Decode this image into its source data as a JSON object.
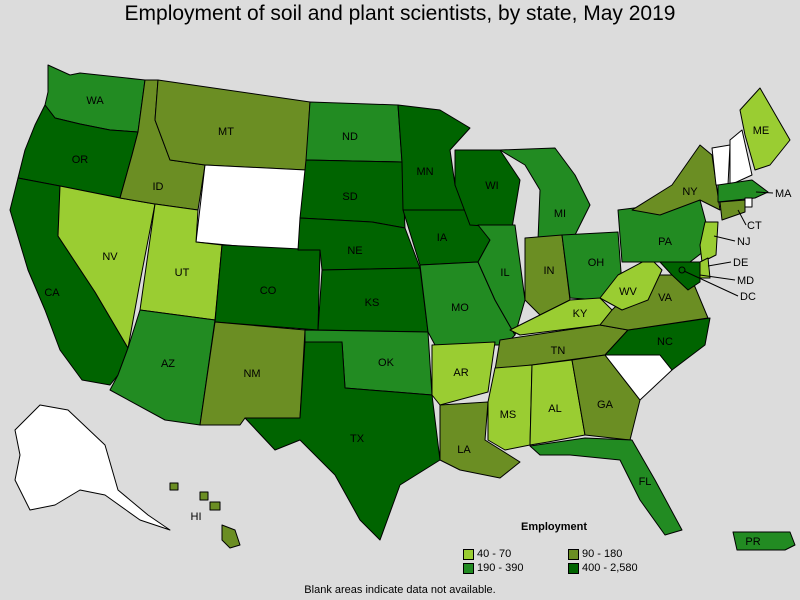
{
  "title": "Employment of soil and plant scientists, by state, May 2019",
  "legend": {
    "title": "Employment",
    "bins": [
      {
        "label": "40 - 70",
        "color": "#9acd32"
      },
      {
        "label": "90 - 180",
        "color": "#6b8e23"
      },
      {
        "label": "190 - 390",
        "color": "#228b22"
      },
      {
        "label": "400 - 2,580",
        "color": "#006400"
      }
    ]
  },
  "no_data_color": "#ffffff",
  "footnote": "Blank areas indicate data not available.",
  "states": {
    "WA": {
      "label": "WA",
      "bin": 2
    },
    "OR": {
      "label": "OR",
      "bin": 3
    },
    "CA": {
      "label": "CA",
      "bin": 3
    },
    "NV": {
      "label": "NV",
      "bin": 0
    },
    "ID": {
      "label": "ID",
      "bin": 1
    },
    "MT": {
      "label": "MT",
      "bin": 1
    },
    "WY": {
      "label": "",
      "bin": null
    },
    "UT": {
      "label": "UT",
      "bin": 0
    },
    "AZ": {
      "label": "AZ",
      "bin": 2
    },
    "CO": {
      "label": "CO",
      "bin": 3
    },
    "NM": {
      "label": "NM",
      "bin": 1
    },
    "ND": {
      "label": "ND",
      "bin": 2
    },
    "SD": {
      "label": "SD",
      "bin": 3
    },
    "NE": {
      "label": "NE",
      "bin": 3
    },
    "KS": {
      "label": "KS",
      "bin": 3
    },
    "OK": {
      "label": "OK",
      "bin": 2
    },
    "TX": {
      "label": "TX",
      "bin": 3
    },
    "MN": {
      "label": "MN",
      "bin": 3
    },
    "IA": {
      "label": "IA",
      "bin": 3
    },
    "MO": {
      "label": "MO",
      "bin": 2
    },
    "AR": {
      "label": "AR",
      "bin": 0
    },
    "LA": {
      "label": "LA",
      "bin": 1
    },
    "WI": {
      "label": "WI",
      "bin": 3
    },
    "IL": {
      "label": "IL",
      "bin": 2
    },
    "MI": {
      "label": "MI",
      "bin": 2
    },
    "IN": {
      "label": "IN",
      "bin": 1
    },
    "OH": {
      "label": "OH",
      "bin": 2
    },
    "KY": {
      "label": "KY",
      "bin": 0
    },
    "TN": {
      "label": "TN",
      "bin": 1
    },
    "MS": {
      "label": "MS",
      "bin": 0
    },
    "AL": {
      "label": "AL",
      "bin": 0
    },
    "GA": {
      "label": "GA",
      "bin": 1
    },
    "FL": {
      "label": "FL",
      "bin": 2
    },
    "SC": {
      "label": "",
      "bin": null
    },
    "NC": {
      "label": "NC",
      "bin": 3
    },
    "VA": {
      "label": "VA",
      "bin": 1
    },
    "WV": {
      "label": "WV",
      "bin": 0
    },
    "PA": {
      "label": "PA",
      "bin": 2
    },
    "NY": {
      "label": "NY",
      "bin": 1
    },
    "ME": {
      "label": "ME",
      "bin": 0
    },
    "VT": {
      "label": "",
      "bin": null
    },
    "NH": {
      "label": "",
      "bin": null
    },
    "MA": {
      "label": "MA",
      "bin": 2
    },
    "RI": {
      "label": "",
      "bin": null
    },
    "CT": {
      "label": "CT",
      "bin": 1
    },
    "NJ": {
      "label": "NJ",
      "bin": 0
    },
    "DE": {
      "label": "DE",
      "bin": 0
    },
    "MD": {
      "label": "MD",
      "bin": 3
    },
    "DC": {
      "label": "DC",
      "bin": 3
    },
    "AK": {
      "label": "",
      "bin": null
    },
    "HI": {
      "label": "HI",
      "bin": 1
    },
    "PR": {
      "label": "PR",
      "bin": 2
    }
  }
}
